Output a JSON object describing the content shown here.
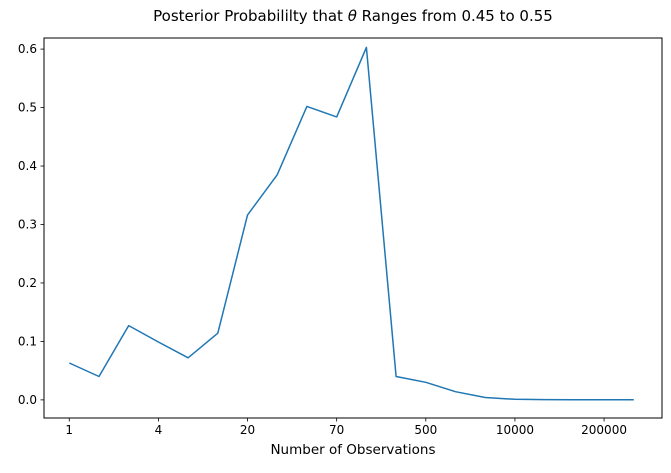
{
  "figure": {
    "title_prefix": "Posterior Probabililty that ",
    "title_theta": "θ",
    "title_suffix": " Ranges from 0.45 to 0.55",
    "xlabel": "Number of Observations"
  },
  "colors": {
    "line": "#1f77b4",
    "axis": "#000000",
    "text": "#000000",
    "background": "#ffffff"
  },
  "chart_data": {
    "type": "line",
    "title": "Posterior Probabililty that θ Ranges from 0.45 to 0.55",
    "xlabel": "Number of Observations",
    "ylabel": "",
    "grid": false,
    "legend": null,
    "x_scale_note": "20 evenly spaced sample points (index 0-19); every 3rd index carries an observation-count tick label",
    "x": [
      0,
      1,
      2,
      3,
      4,
      5,
      6,
      7,
      8,
      9,
      10,
      11,
      12,
      13,
      14,
      15,
      16,
      17,
      18,
      19
    ],
    "values": [
      0.063,
      0.04,
      0.127,
      0.099,
      0.072,
      0.114,
      0.316,
      0.385,
      0.502,
      0.484,
      0.603,
      0.04,
      0.03,
      0.014,
      0.004,
      0.001,
      0.0005,
      0.0003,
      0.0002,
      0.0001
    ],
    "x_ticks": {
      "positions": [
        0,
        3,
        6,
        9,
        12,
        15,
        18
      ],
      "labels": [
        "1",
        "4",
        "20",
        "70",
        "500",
        "10000",
        "200000"
      ]
    },
    "y_ticks": {
      "positions": [
        0.0,
        0.1,
        0.2,
        0.3,
        0.4,
        0.5,
        0.6
      ],
      "labels": [
        "0.0",
        "0.1",
        "0.2",
        "0.3",
        "0.4",
        "0.5",
        "0.6"
      ]
    },
    "xlim": [
      -0.85,
      19.95
    ],
    "ylim": [
      -0.031,
      0.619
    ]
  }
}
